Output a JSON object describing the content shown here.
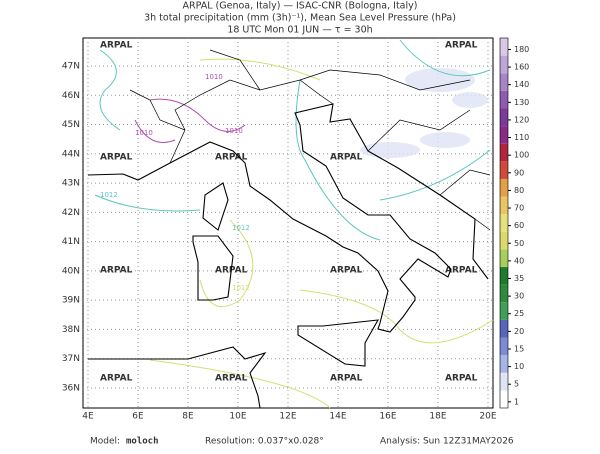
{
  "header": {
    "line1": "ARPAL (Genoa, Italy)  —  ISAC-CNR (Bologna, Italy)",
    "line2": "3h total precipitation (mm (3h)⁻¹), Mean Sea Level Pressure (hPa)",
    "line3": "18 UTC Mon 01 JUN  —  τ = 30h"
  },
  "map": {
    "lon_labels": [
      "4E",
      "6E",
      "8E",
      "10E",
      "12E",
      "14E",
      "16E",
      "18E",
      "20E"
    ],
    "lat_labels": [
      "47N",
      "46N",
      "45N",
      "44N",
      "43N",
      "42N",
      "41N",
      "40N",
      "39N",
      "38N",
      "37N",
      "36N"
    ],
    "watermark": "ARPAL",
    "isobar_labels": [
      1010,
      1010,
      1010,
      1012,
      1012,
      1012
    ]
  },
  "colorbar": {
    "levels": [
      1,
      5,
      10,
      15,
      20,
      25,
      30,
      35,
      40,
      50,
      60,
      70,
      80,
      90,
      100,
      110,
      120,
      130,
      140,
      160,
      180
    ],
    "colors": [
      "#ffffff",
      "#dfe3f5",
      "#a9b4e6",
      "#7c8bd6",
      "#5566bb",
      "#3f9f5a",
      "#2f8a3f",
      "#1d7b2e",
      "#a8cf5c",
      "#ddd96a",
      "#e8e07a",
      "#e9c462",
      "#e3a047",
      "#d24a3a",
      "#b2253d",
      "#8a2b88",
      "#7c3a9a",
      "#8e5bb0",
      "#a784c4",
      "#bea6d6",
      "#d8c9e6"
    ]
  },
  "footer": {
    "model_label": "Model:",
    "model": "moloch",
    "resolution": "Resolution: 0.037°x0.028°",
    "analysis": "Analysis: Sun 12Z31MAY2026"
  }
}
